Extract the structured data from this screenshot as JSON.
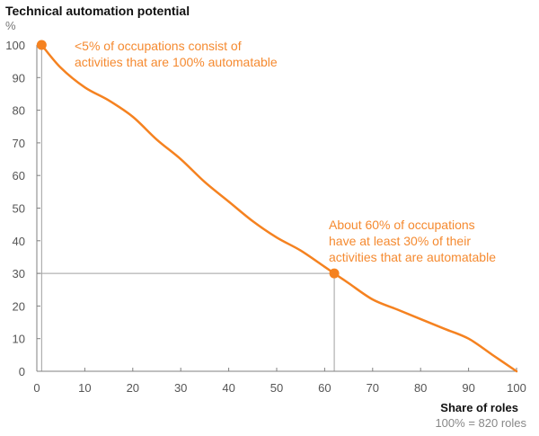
{
  "chart_data": {
    "type": "line",
    "title": "Technical automation potential",
    "ylabel": "%",
    "xlabel": "Share of roles",
    "xlabel_note": "100% = 820 roles",
    "xlim": [
      0,
      100
    ],
    "ylim": [
      0,
      100
    ],
    "xticks": [
      0,
      10,
      20,
      30,
      40,
      50,
      60,
      70,
      80,
      90,
      100
    ],
    "yticks": [
      0,
      10,
      20,
      30,
      40,
      50,
      60,
      70,
      80,
      90,
      100
    ],
    "grid": false,
    "legend": "none",
    "series": [
      {
        "name": "Technical automation potential",
        "color": "#f58220",
        "x": [
          1,
          5,
          10,
          15,
          20,
          25,
          30,
          35,
          40,
          45,
          50,
          55,
          60,
          62,
          65,
          70,
          75,
          80,
          85,
          90,
          95,
          100
        ],
        "y": [
          100,
          93,
          87,
          83,
          78,
          71,
          65,
          58,
          52,
          46,
          41,
          37,
          32,
          30,
          27,
          22,
          19,
          16,
          13,
          10,
          5,
          0
        ]
      }
    ],
    "highlight_points": [
      {
        "x": 1,
        "y": 100
      },
      {
        "x": 62,
        "y": 30
      }
    ],
    "reference_lines": [
      {
        "orientation": "vertical",
        "x": 1,
        "from_y": 0,
        "to_y": 100
      },
      {
        "orientation": "horizontal",
        "y": 30,
        "from_x": 0,
        "to_x": 62
      },
      {
        "orientation": "vertical",
        "x": 62,
        "from_y": 0,
        "to_y": 30
      }
    ],
    "annotations": [
      {
        "line1": "<5% of occupations consist of",
        "line2": "activities that are 100% automatable"
      },
      {
        "line1": "About 60% of occupations",
        "line2": "have at least 30% of their",
        "line3": "activities that are automatable"
      }
    ]
  }
}
